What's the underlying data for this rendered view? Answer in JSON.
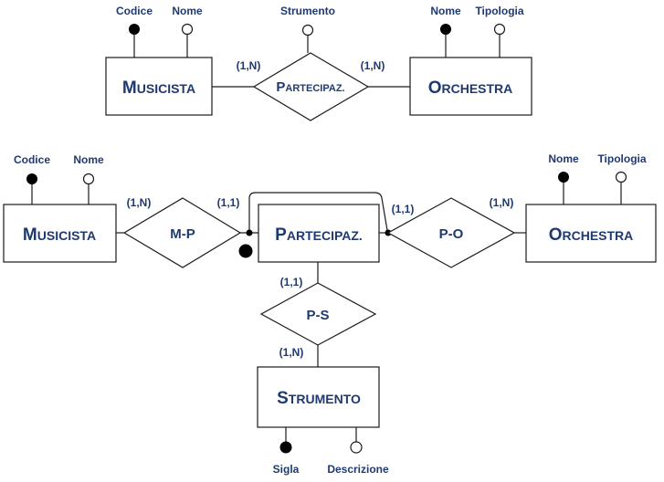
{
  "top": {
    "musicista": {
      "big": "M",
      "small": "USICISTA",
      "attrs": [
        "Codice",
        "Nome"
      ]
    },
    "orchestra": {
      "big": "O",
      "small": "RCHESTRA",
      "attrs": [
        "Nome",
        "Tipologia"
      ]
    },
    "relation": {
      "big": "P",
      "small": "ARTECIPAZ.",
      "attr": "Strumento"
    },
    "card_left": "(1,N)",
    "card_right": "(1,N)"
  },
  "bottom": {
    "musicista": {
      "big": "M",
      "small": "USICISTA",
      "attrs": [
        "Codice",
        "Nome"
      ]
    },
    "partecipaz": {
      "big": "P",
      "small": "ARTECIPAZ."
    },
    "orchestra": {
      "big": "O",
      "small": "RCHESTRA",
      "attrs": [
        "Nome",
        "Tipologia"
      ]
    },
    "strumento": {
      "big": "S",
      "small": "TRUMENTO",
      "attrs": [
        "Sigla",
        "Descrizione"
      ]
    },
    "rel_mp": "M-P",
    "rel_po": "P-O",
    "rel_ps": "P-S",
    "card_mp_musicista": "(1,N)",
    "card_mp_partecipaz": "(1,1)",
    "card_po_partecipaz": "(1,1)",
    "card_po_orchestra": "(1,N)",
    "card_ps_partecipaz": "(1,1)",
    "card_ps_strumento": "(1,N)"
  }
}
